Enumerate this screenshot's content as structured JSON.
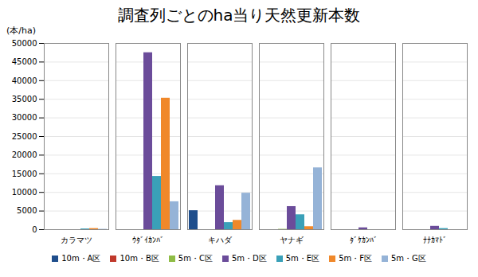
{
  "chart_data": {
    "type": "bar",
    "title": "調査列ごとのha当り天然更新本数",
    "ylabel": "(本/ha)",
    "categories": [
      "カラマツ",
      "ｳﾀﾞｲｶﾝﾊﾞ",
      "キハダ",
      "ヤナギ",
      "ﾀﾞｹｶﾝﾊﾞ",
      "ﾅﾅｶﾏﾄﾞ"
    ],
    "series": [
      {
        "name": "10m・A区",
        "color": "#1f4e8c",
        "values": [
          0,
          0,
          5100,
          0,
          0,
          0
        ]
      },
      {
        "name": "10m・B区",
        "color": "#c0392b",
        "values": [
          0,
          0,
          0,
          0,
          0,
          0
        ]
      },
      {
        "name": "5m・C区",
        "color": "#8fbc45",
        "values": [
          0,
          0,
          0,
          100,
          0,
          0
        ]
      },
      {
        "name": "5m・D区",
        "color": "#6b4c9a",
        "values": [
          0,
          47500,
          11800,
          6200,
          500,
          900
        ]
      },
      {
        "name": "5m・E区",
        "color": "#3aa0b8",
        "values": [
          200,
          14300,
          1900,
          4000,
          0,
          300
        ]
      },
      {
        "name": "5m・F区",
        "color": "#f0882a",
        "values": [
          300,
          35300,
          2500,
          800,
          0,
          0
        ]
      },
      {
        "name": "5m・G区",
        "color": "#95b3d7",
        "values": [
          100,
          7500,
          9800,
          16600,
          0,
          0
        ]
      }
    ],
    "ylim": [
      0,
      50000
    ],
    "yticks": [
      0,
      5000,
      10000,
      15000,
      20000,
      25000,
      30000,
      35000,
      40000,
      45000,
      50000
    ],
    "grid": true,
    "legend": "bottom"
  }
}
